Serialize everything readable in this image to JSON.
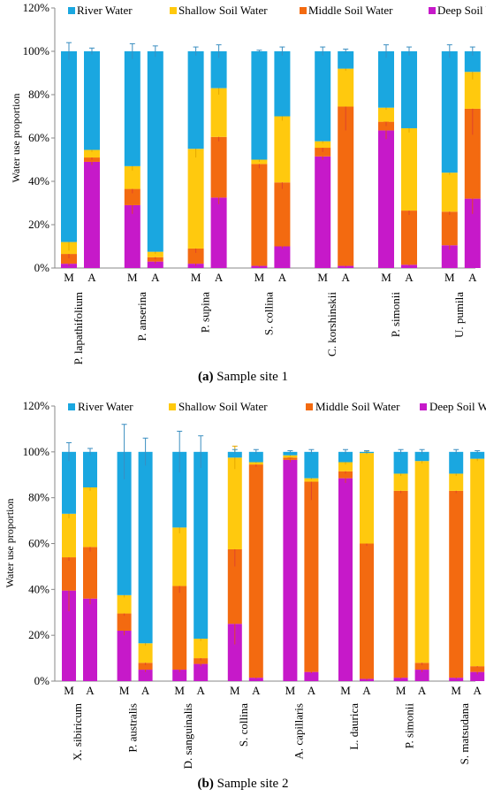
{
  "colors": {
    "river": "#1AA7E0",
    "shallow": "#FFC90E",
    "middle": "#F36A10",
    "deep": "#C619C9",
    "error": "#E0442A",
    "axis": "#888888"
  },
  "chart_data": [
    {
      "type": "bar",
      "stacked": true,
      "caption_label": "(a)",
      "caption_text": " Sample site 1",
      "ylabel": "Water use proportion",
      "yticks": [
        "0%",
        "20%",
        "40%",
        "60%",
        "80%",
        "100%",
        "120%"
      ],
      "ylim": [
        0,
        120
      ],
      "legend": [
        "River Water",
        "Shallow Soil Water",
        "Middle Soil Water",
        "Deep Soil Water"
      ],
      "legend_position": "top",
      "bar_labels": [
        "M",
        "A"
      ],
      "species": [
        {
          "name": "P. lapathifolium",
          "bars": [
            {
              "deep": 2,
              "middle": 4.5,
              "shallow": 5.5,
              "river": 88,
              "err": [
                1,
                2,
                4,
                4
              ]
            },
            {
              "deep": 49,
              "middle": 2,
              "shallow": 3.5,
              "river": 45.5,
              "err": [
                1.5,
                1,
                1,
                1.5
              ]
            }
          ]
        },
        {
          "name": "P. anserina",
          "bars": [
            {
              "deep": 29,
              "middle": 7.5,
              "shallow": 10.5,
              "river": 53,
              "err": [
                4,
                2,
                2,
                3.5
              ]
            },
            {
              "deep": 3,
              "middle": 2,
              "shallow": 2.5,
              "river": 92.5,
              "err": [
                1,
                1,
                1,
                2.5
              ]
            }
          ]
        },
        {
          "name": "P. supina",
          "bars": [
            {
              "deep": 2,
              "middle": 7,
              "shallow": 46,
              "river": 45,
              "err": [
                1,
                2,
                4,
                2
              ]
            },
            {
              "deep": 32.5,
              "middle": 28,
              "shallow": 22.5,
              "river": 17,
              "err": [
                3,
                2,
                3,
                3
              ]
            }
          ]
        },
        {
          "name": "S. collina",
          "bars": [
            {
              "deep": 1,
              "middle": 47,
              "shallow": 2,
              "river": 50,
              "err": [
                0.5,
                2,
                1,
                0.5
              ]
            },
            {
              "deep": 10,
              "middle": 29.5,
              "shallow": 30.5,
              "river": 30,
              "err": [
                1,
                3,
                2,
                2
              ]
            }
          ]
        },
        {
          "name": "C. korshinskii",
          "bars": [
            {
              "deep": 51.5,
              "middle": 4,
              "shallow": 3,
              "river": 41.5,
              "err": [
                1.5,
                2,
                1,
                2
              ]
            },
            {
              "deep": 1,
              "middle": 73.5,
              "shallow": 17.5,
              "river": 8,
              "err": [
                0.5,
                11,
                1,
                1
              ]
            }
          ]
        },
        {
          "name": "P. simonii",
          "bars": [
            {
              "deep": 63.5,
              "middle": 4,
              "shallow": 6.5,
              "river": 26,
              "err": [
                4,
                2,
                1,
                3
              ]
            },
            {
              "deep": 1.5,
              "middle": 25,
              "shallow": 38,
              "river": 35.5,
              "err": [
                0.5,
                2,
                2,
                2
              ]
            }
          ]
        },
        {
          "name": "U. pumila",
          "bars": [
            {
              "deep": 10.5,
              "middle": 15.5,
              "shallow": 18,
              "river": 56,
              "err": [
                2,
                1.5,
                1,
                3
              ]
            },
            {
              "deep": 32,
              "middle": 41.5,
              "shallow": 17,
              "river": 9.5,
              "err": [
                7,
                12,
                3.5,
                2
              ]
            }
          ]
        }
      ]
    },
    {
      "type": "bar",
      "stacked": true,
      "caption_label": "(b)",
      "caption_text": " Sample site 2",
      "ylabel": "Water use proportion",
      "yticks": [
        "0%",
        "20%",
        "40%",
        "60%",
        "80%",
        "100%",
        "120%"
      ],
      "ylim": [
        0,
        120
      ],
      "legend": [
        "River Water",
        "Shallow Soil Water",
        "Middle Soil Water",
        "Deep Soil Water"
      ],
      "legend_position": "top",
      "bar_labels": [
        "M",
        "A"
      ],
      "species": [
        {
          "name": "X. sibiricum",
          "bars": [
            {
              "deep": 39.5,
              "middle": 14.5,
              "shallow": 19,
              "river": 27,
              "err": [
                9,
                1.5,
                2,
                4
              ]
            },
            {
              "deep": 36,
              "middle": 22.5,
              "shallow": 26,
              "river": 15.5,
              "err": [
                2.5,
                2,
                1.5,
                1.5
              ]
            }
          ]
        },
        {
          "name": "P. australis",
          "bars": [
            {
              "deep": 22,
              "middle": 7.5,
              "shallow": 8,
              "river": 62.5,
              "err": [
                2,
                1,
                1,
                12
              ]
            },
            {
              "deep": 5,
              "middle": 3,
              "shallow": 8.5,
              "river": 83.5,
              "err": [
                1,
                1,
                1,
                6
              ]
            }
          ]
        },
        {
          "name": "D. sanguinalis",
          "bars": [
            {
              "deep": 5,
              "middle": 36.5,
              "shallow": 25.5,
              "river": 33,
              "err": [
                1,
                3,
                2.5,
                9
              ]
            },
            {
              "deep": 7.5,
              "middle": 2.5,
              "shallow": 8.5,
              "river": 81.5,
              "err": [
                1,
                1,
                1,
                7
              ]
            }
          ]
        },
        {
          "name": "S. collina",
          "bars": [
            {
              "deep": 25,
              "middle": 32.5,
              "shallow": 40,
              "river": 2.5,
              "err": [
                9,
                7.5,
                5,
                1
              ]
            },
            {
              "deep": 1.5,
              "middle": 93,
              "shallow": 1,
              "river": 4.5,
              "err": [
                0.5,
                1,
                0.5,
                1
              ]
            }
          ]
        },
        {
          "name": "A. capillaris",
          "bars": [
            {
              "deep": 96.5,
              "middle": 1,
              "shallow": 1,
              "river": 1.5,
              "err": [
                1,
                0.5,
                0.5,
                0.5
              ]
            },
            {
              "deep": 4,
              "middle": 83,
              "shallow": 1.5,
              "river": 11.5,
              "err": [
                0.5,
                8,
                0.5,
                1
              ]
            }
          ]
        },
        {
          "name": "L. daurica",
          "bars": [
            {
              "deep": 88.5,
              "middle": 3,
              "shallow": 4,
              "river": 4.5,
              "err": [
                2,
                1,
                1,
                1
              ]
            },
            {
              "deep": 1,
              "middle": 59,
              "shallow": 39.5,
              "river": 0.5,
              "err": [
                0.5,
                1,
                0.5,
                0.5
              ]
            }
          ]
        },
        {
          "name": "P. simonii",
          "bars": [
            {
              "deep": 1.5,
              "middle": 81.5,
              "shallow": 7.5,
              "river": 9.5,
              "err": [
                0.5,
                1,
                1,
                1
              ]
            },
            {
              "deep": 5,
              "middle": 3,
              "shallow": 88,
              "river": 4,
              "err": [
                1,
                1,
                1,
                1
              ]
            }
          ]
        },
        {
          "name": "S. matsudana",
          "bars": [
            {
              "deep": 1.5,
              "middle": 81.5,
              "shallow": 7.5,
              "river": 9.5,
              "err": [
                0.5,
                1,
                1,
                1
              ]
            },
            {
              "deep": 4,
              "middle": 2.5,
              "shallow": 90.5,
              "river": 3,
              "err": [
                1,
                0.5,
                1,
                0.5
              ]
            }
          ]
        }
      ]
    }
  ]
}
